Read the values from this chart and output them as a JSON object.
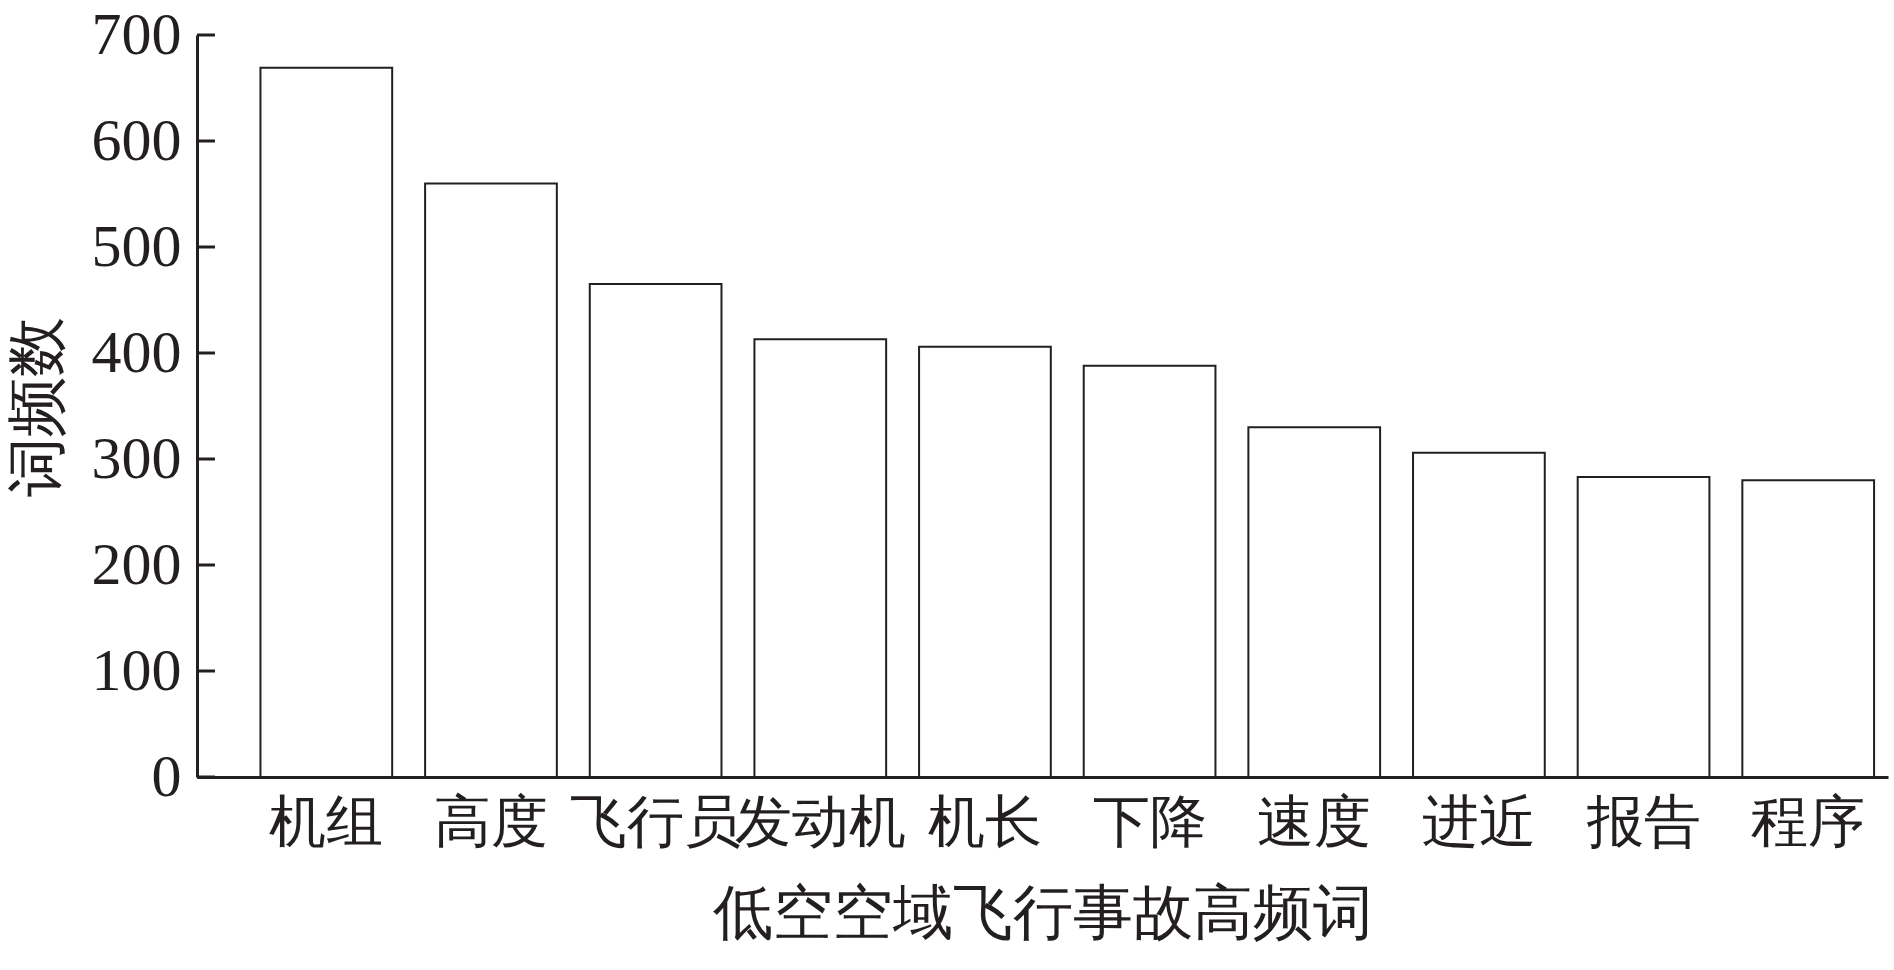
{
  "chart_data": {
    "type": "bar",
    "xlabel": "低空空域飞行事故高频词",
    "ylabel": "词频数",
    "categories": [
      "机组",
      "高度",
      "飞行员",
      "发动机",
      "机长",
      "下降",
      "速度",
      "进近",
      "报告",
      "程序"
    ],
    "values": [
      669,
      560,
      465,
      413,
      406,
      388,
      330,
      306,
      283,
      280
    ],
    "color": "#ffffff",
    "ylim": [
      0,
      700
    ],
    "yticks": [
      0,
      100,
      200,
      300,
      400,
      500,
      600,
      700
    ],
    "grid": false
  }
}
